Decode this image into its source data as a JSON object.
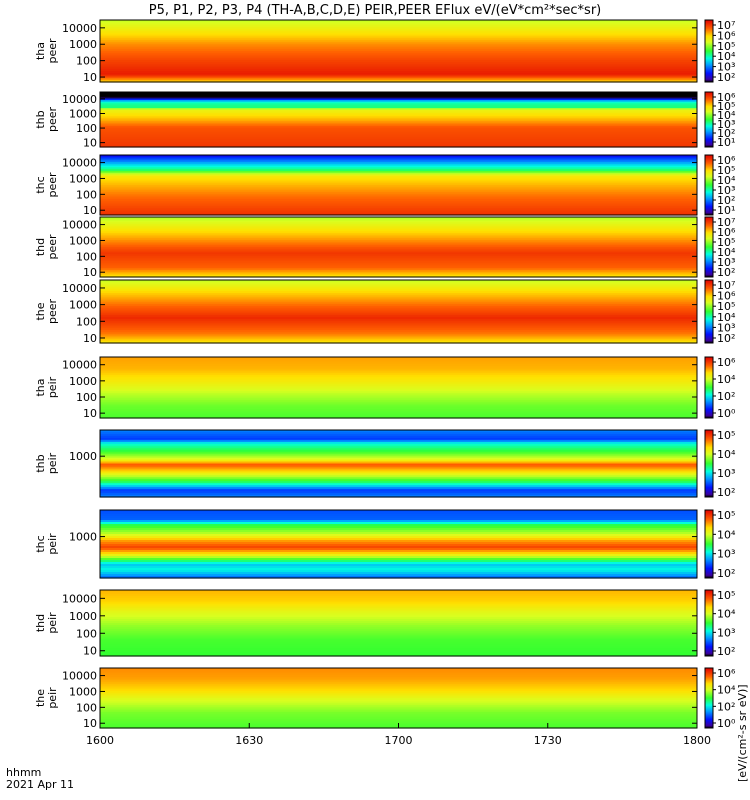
{
  "chart_data": {
    "type": "heatmap",
    "title": "P5, P1, P2, P3, P4 (TH-A,B,C,D,E) PEIR,PEER EFlux eV/(eV*cm²*sec*sr)",
    "x_label": "hhmm",
    "x_sublabel": "2021 Apr 11",
    "x_ticks": [
      "1600",
      "1630",
      "1700",
      "1730",
      "1800"
    ],
    "y_scale": "log",
    "colorbar_label": "[eV/(cm²-s sr eV)]",
    "panels": [
      {
        "name": "tha peer",
        "ylabel": "tha\npeer",
        "yticks": [
          "10000",
          "1000",
          "100",
          "10"
        ],
        "ylim": [
          5,
          30000
        ],
        "cb_ticks": [
          "10⁷",
          "10⁶",
          "10⁵",
          "10⁴",
          "10³",
          "10²"
        ],
        "profile": [
          [
            0.0,
            0.74
          ],
          [
            0.12,
            0.96
          ],
          [
            0.35,
            0.9
          ],
          [
            0.6,
            0.82
          ],
          [
            0.85,
            0.7
          ],
          [
            1.0,
            0.62
          ]
        ]
      },
      {
        "name": "thb peer",
        "ylabel": "thb\npeer",
        "yticks": [
          "10000",
          "1000",
          "100",
          "10"
        ],
        "ylim": [
          5,
          30000
        ],
        "cb_ticks": [
          "10⁶",
          "10⁵",
          "10⁴",
          "10³",
          "10²",
          "10¹"
        ],
        "profile": [
          [
            0.0,
            0.92
          ],
          [
            0.35,
            0.88
          ],
          [
            0.5,
            0.78
          ],
          [
            0.68,
            0.68
          ],
          [
            0.72,
            0.45
          ],
          [
            0.8,
            0.42
          ],
          [
            0.84,
            0.3
          ],
          [
            0.9,
            0.0
          ],
          [
            1.0,
            0.0
          ]
        ]
      },
      {
        "name": "thc peer",
        "ylabel": "thc\npeer",
        "yticks": [
          "10000",
          "1000",
          "100",
          "10"
        ],
        "ylim": [
          5,
          30000
        ],
        "cb_ticks": [
          "10⁶",
          "10⁵",
          "10⁴",
          "10³",
          "10²",
          "10¹"
        ],
        "profile": [
          [
            0.0,
            0.93
          ],
          [
            0.3,
            0.85
          ],
          [
            0.5,
            0.78
          ],
          [
            0.65,
            0.72
          ],
          [
            0.75,
            0.46
          ],
          [
            0.85,
            0.32
          ],
          [
            0.95,
            0.18
          ],
          [
            1.0,
            0.1
          ]
        ]
      },
      {
        "name": "thd peer",
        "ylabel": "thd\npeer",
        "yticks": [
          "10000",
          "1000",
          "100",
          "10"
        ],
        "ylim": [
          5,
          30000
        ],
        "cb_ticks": [
          "10⁷",
          "10⁶",
          "10⁵",
          "10⁴",
          "10³",
          "10²"
        ],
        "profile": [
          [
            0.0,
            0.72
          ],
          [
            0.15,
            0.86
          ],
          [
            0.4,
            0.92
          ],
          [
            0.6,
            0.82
          ],
          [
            0.8,
            0.72
          ],
          [
            1.0,
            0.6
          ]
        ]
      },
      {
        "name": "the peer",
        "ylabel": "the\npeer",
        "yticks": [
          "10000",
          "1000",
          "100",
          "10"
        ],
        "ylim": [
          5,
          30000
        ],
        "cb_ticks": [
          "10⁷",
          "10⁶",
          "10⁵",
          "10⁴",
          "10³",
          "10²"
        ],
        "profile": [
          [
            0.0,
            0.72
          ],
          [
            0.15,
            0.84
          ],
          [
            0.4,
            0.94
          ],
          [
            0.62,
            0.84
          ],
          [
            0.82,
            0.74
          ],
          [
            1.0,
            0.62
          ]
        ]
      },
      {
        "name": "tha peir",
        "ylabel": "tha\npeir",
        "yticks": [
          "10000",
          "1000",
          "100",
          "10"
        ],
        "ylim": [
          5,
          30000
        ],
        "cb_ticks": [
          "10⁶",
          "10⁴",
          "10²",
          "10⁰"
        ],
        "profile": [
          [
            0.0,
            0.52
          ],
          [
            0.2,
            0.55
          ],
          [
            0.4,
            0.62
          ],
          [
            0.62,
            0.72
          ],
          [
            0.8,
            0.78
          ],
          [
            1.0,
            0.8
          ]
        ]
      },
      {
        "name": "thb peir",
        "ylabel": "thb\npeir",
        "yticks": [
          "1000"
        ],
        "ylim": [
          5,
          30000
        ],
        "cb_ticks": [
          "10⁵",
          "10⁴",
          "10³",
          "10²"
        ],
        "profile": [
          [
            0.0,
            0.25
          ],
          [
            0.1,
            0.18
          ],
          [
            0.22,
            0.46
          ],
          [
            0.38,
            0.74
          ],
          [
            0.48,
            0.88
          ],
          [
            0.56,
            0.66
          ],
          [
            0.68,
            0.5
          ],
          [
            0.8,
            0.38
          ],
          [
            0.86,
            0.18
          ],
          [
            1.0,
            0.25
          ]
        ]
      },
      {
        "name": "thc peir",
        "ylabel": "thc\npeir",
        "yticks": [
          "1000"
        ],
        "ylim": [
          5,
          30000
        ],
        "cb_ticks": [
          "10⁵",
          "10⁴",
          "10³",
          "10²"
        ],
        "profile": [
          [
            0.0,
            0.22
          ],
          [
            0.12,
            0.38
          ],
          [
            0.2,
            0.32
          ],
          [
            0.35,
            0.72
          ],
          [
            0.45,
            0.9
          ],
          [
            0.55,
            0.8
          ],
          [
            0.65,
            0.62
          ],
          [
            0.78,
            0.48
          ],
          [
            0.86,
            0.22
          ],
          [
            1.0,
            0.2
          ]
        ]
      },
      {
        "name": "thd peir",
        "ylabel": "thd\npeir",
        "yticks": [
          "10000",
          "1000",
          "100",
          "10"
        ],
        "ylim": [
          5,
          30000
        ],
        "cb_ticks": [
          "10⁵",
          "10⁴",
          "10³",
          "10²"
        ],
        "profile": [
          [
            0.0,
            0.5
          ],
          [
            0.25,
            0.52
          ],
          [
            0.45,
            0.58
          ],
          [
            0.65,
            0.66
          ],
          [
            0.82,
            0.75
          ],
          [
            1.0,
            0.78
          ]
        ]
      },
      {
        "name": "the peir",
        "ylabel": "the\npeir",
        "yticks": [
          "10000",
          "1000",
          "100",
          "10"
        ],
        "ylim": [
          5,
          30000
        ],
        "cb_ticks": [
          "10⁶",
          "10⁴",
          "10²",
          "10⁰"
        ],
        "profile": [
          [
            0.0,
            0.52
          ],
          [
            0.25,
            0.56
          ],
          [
            0.45,
            0.64
          ],
          [
            0.62,
            0.74
          ],
          [
            0.82,
            0.8
          ],
          [
            1.0,
            0.82
          ]
        ]
      }
    ]
  }
}
